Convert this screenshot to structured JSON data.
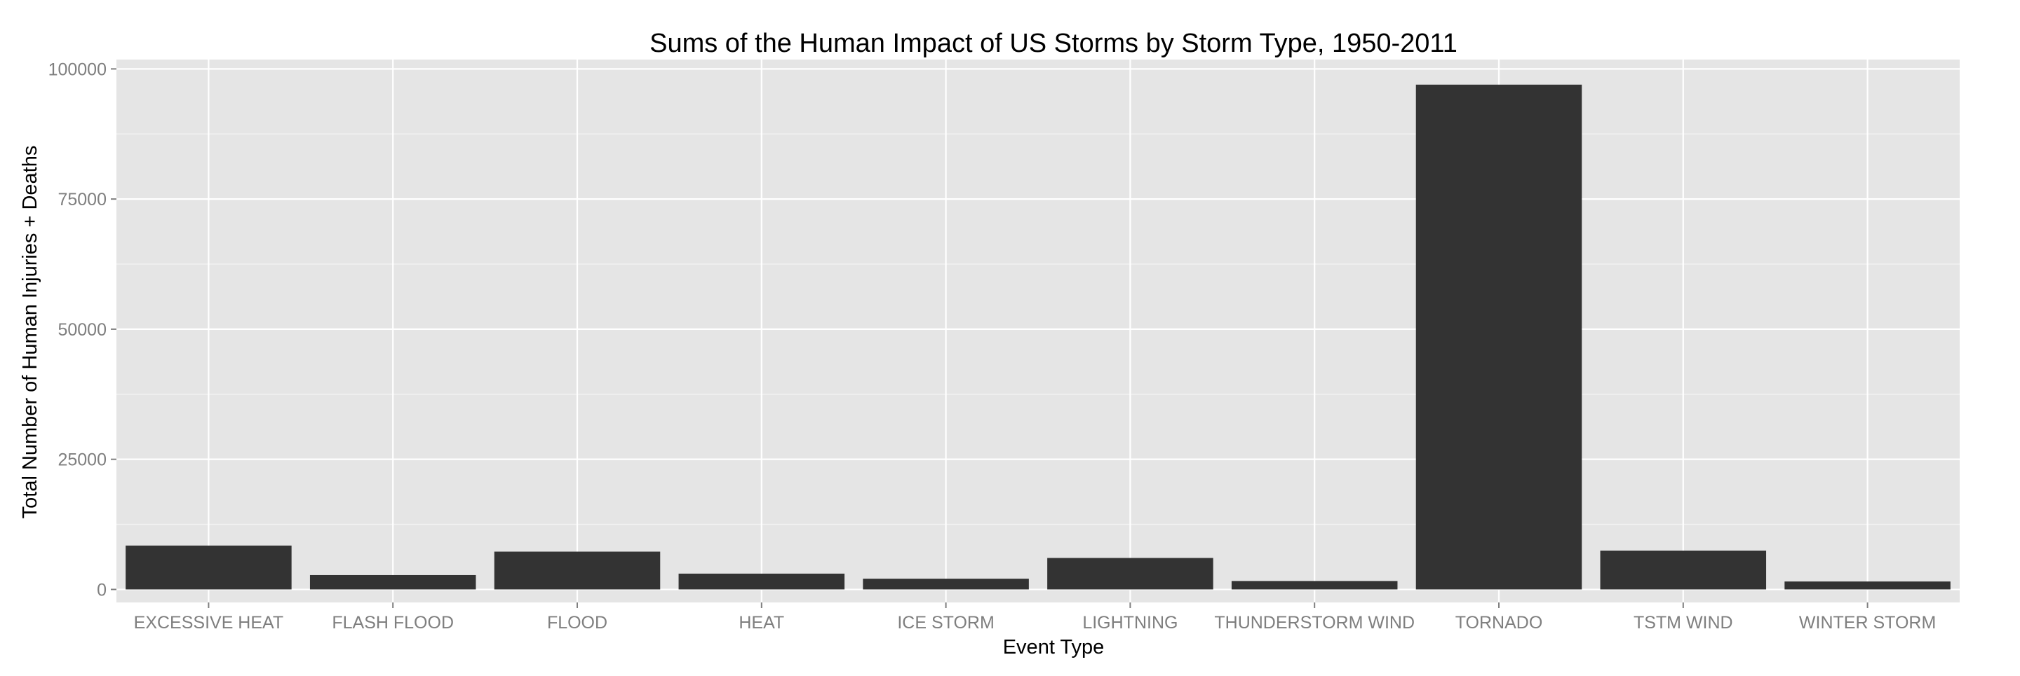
{
  "chart_data": {
    "type": "bar",
    "title": "Sums of the Human Impact of US Storms by Storm Type, 1950-2011",
    "xlabel": "Event Type",
    "ylabel": "Total Number of Human Injuries + Deaths",
    "categories": [
      "EXCESSIVE HEAT",
      "FLASH FLOOD",
      "FLOOD",
      "HEAT",
      "ICE STORM",
      "LIGHTNING",
      "THUNDERSTORM WIND",
      "TORNADO",
      "TSTM WIND",
      "WINTER STORM"
    ],
    "values": [
      8428,
      2755,
      7259,
      3037,
      2064,
      6046,
      1621,
      96979,
      7461,
      1527
    ],
    "ylim": [
      -2500,
      101800
    ],
    "yticks": [
      0,
      25000,
      50000,
      75000,
      100000
    ],
    "ytick_labels": [
      "0",
      "25000",
      "50000",
      "75000",
      "100000"
    ],
    "grid": true,
    "legend": "none",
    "colors": {
      "panel_background": "#e5e5e5",
      "grid_major": "#ffffff",
      "grid_minor": "#f2f2f2",
      "bar_fill": "#333333",
      "tick_label": "#7f7f7f",
      "text": "#000000"
    }
  }
}
